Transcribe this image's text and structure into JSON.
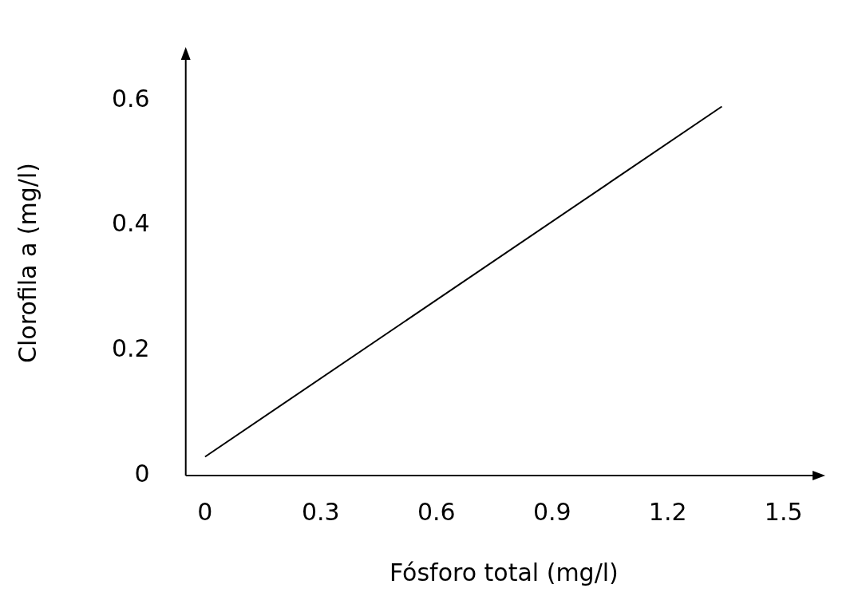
{
  "chart_data": {
    "type": "line",
    "xlabel": "Fósforo total (mg/l)",
    "ylabel": "Clorofila a (mg/l)",
    "x": [
      0,
      1.34
    ],
    "series": [
      {
        "color": "#000000",
        "values": [
          0.03,
          0.59
        ]
      }
    ],
    "xlim": [
      -0.05,
      1.6
    ],
    "ylim": [
      0,
      0.68
    ],
    "xticks": [
      0,
      0.3,
      0.6,
      0.9,
      1.2,
      1.5
    ],
    "yticks": [
      0,
      0.2,
      0.4,
      0.6
    ],
    "grid": false,
    "legend": false
  }
}
